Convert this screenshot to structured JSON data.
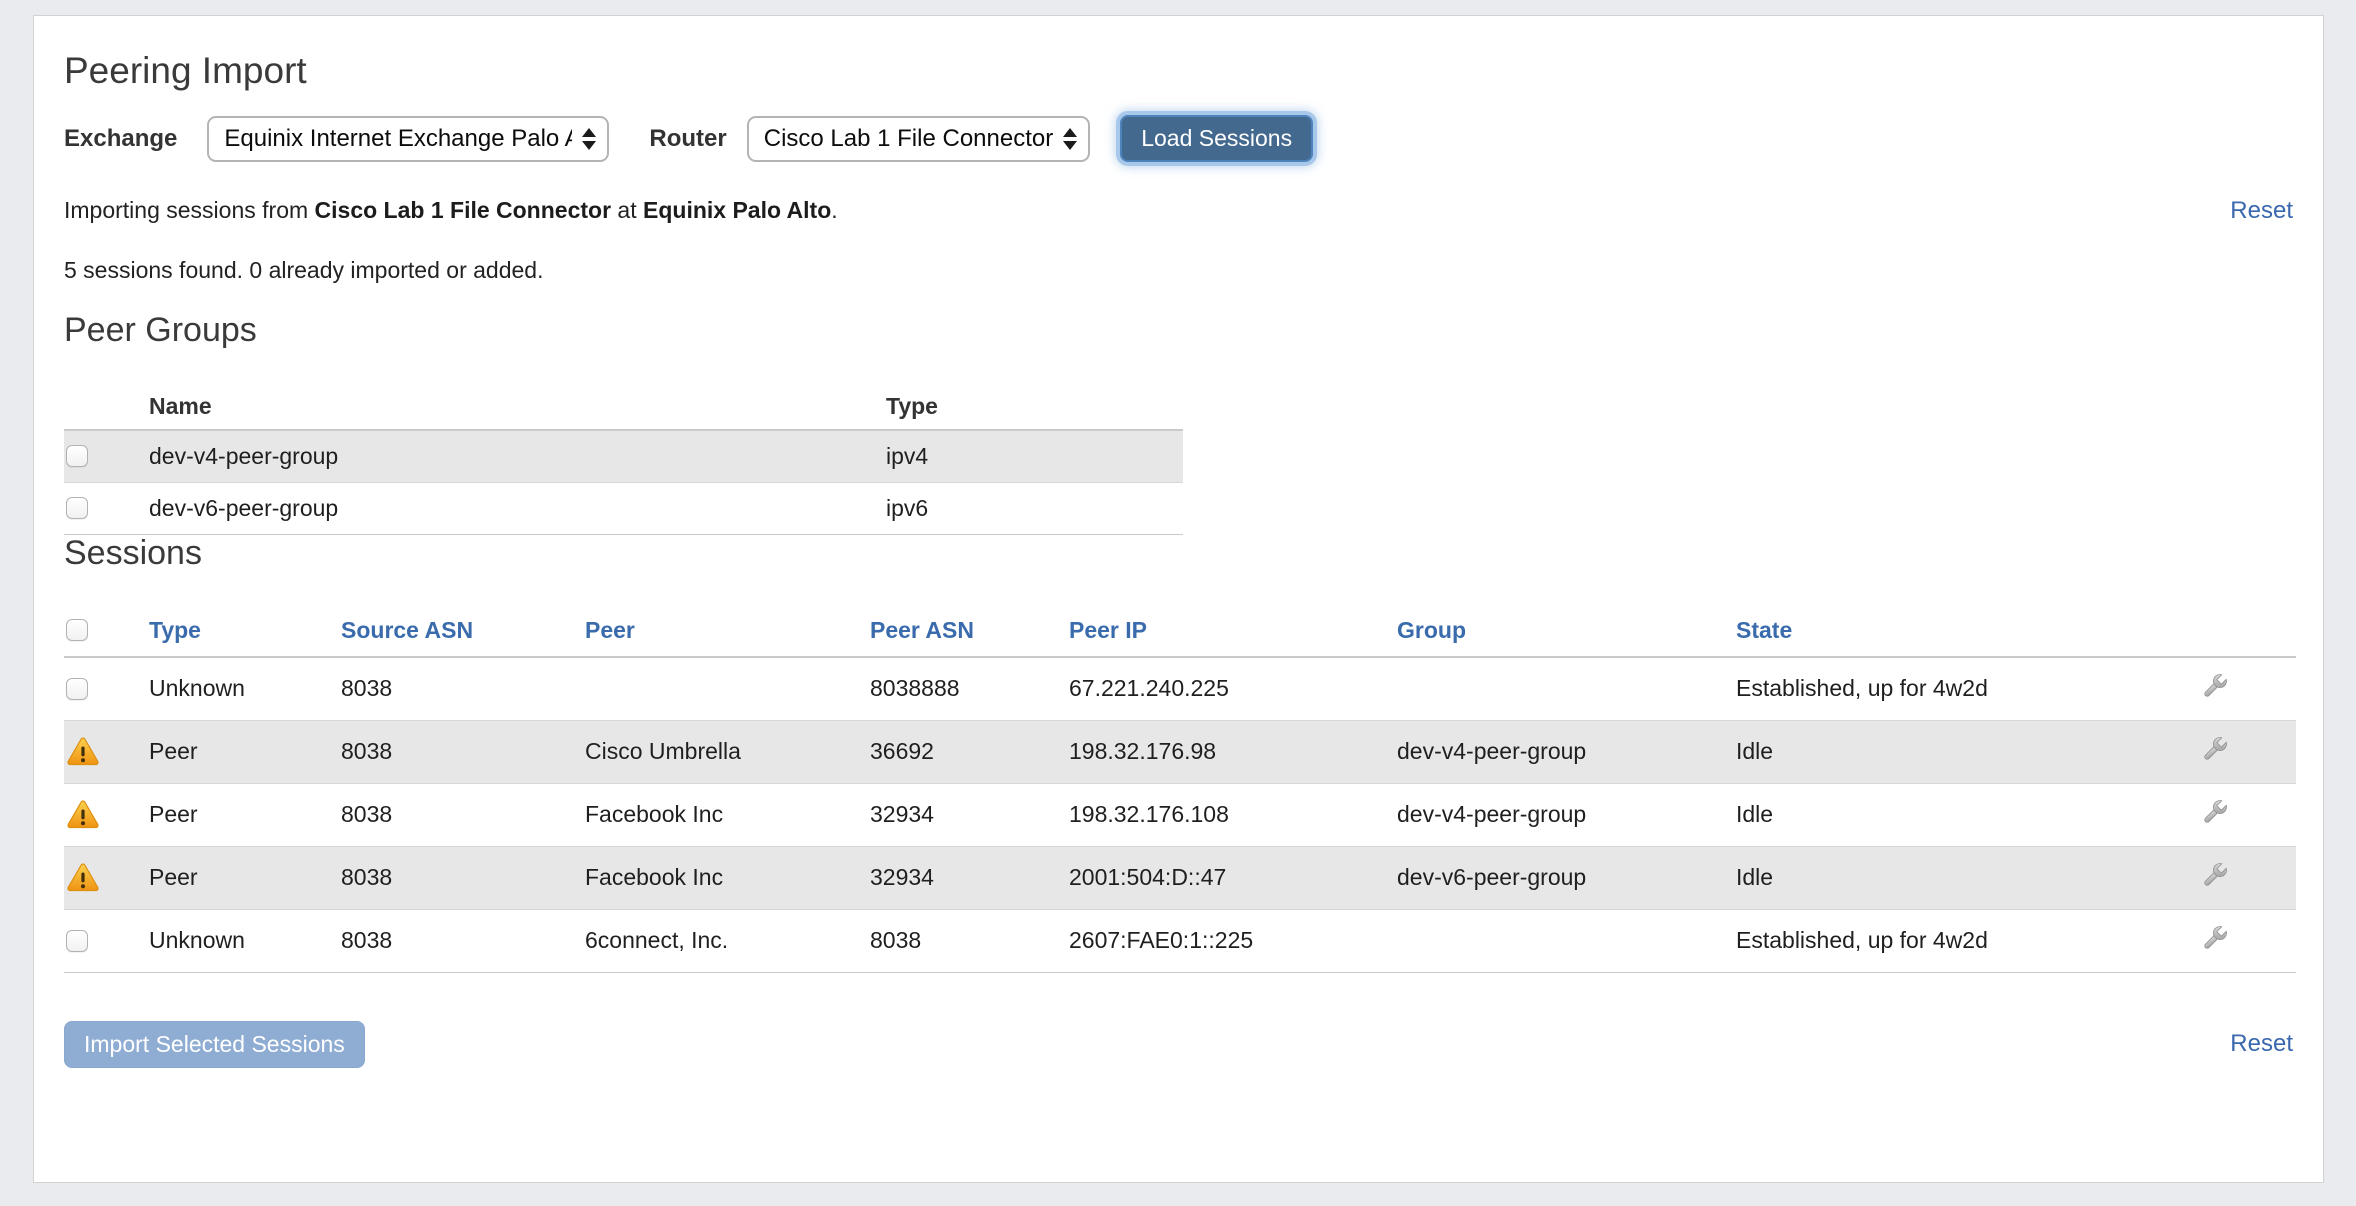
{
  "header": {
    "title": "Peering Import"
  },
  "form": {
    "exchange_label": "Exchange",
    "exchange_value": "Equinix Internet Exchange Palo Alto",
    "router_label": "Router",
    "router_value": "Cisco Lab 1 File Connector",
    "load_button": "Load Sessions"
  },
  "status": {
    "import_prefix": "Importing sessions from ",
    "connector_name": "Cisco Lab 1 File Connector",
    "at_word": " at ",
    "exchange_name": "Equinix Palo Alto",
    "period": ".",
    "summary": "5 sessions found. 0 already imported or added.",
    "reset_label": "Reset"
  },
  "peer_groups": {
    "title": "Peer Groups",
    "columns": {
      "name": "Name",
      "type": "Type"
    },
    "rows": [
      {
        "name": "dev-v4-peer-group",
        "type": "ipv4"
      },
      {
        "name": "dev-v6-peer-group",
        "type": "ipv6"
      }
    ]
  },
  "sessions": {
    "title": "Sessions",
    "columns": {
      "type": "Type",
      "source_asn": "Source ASN",
      "peer": "Peer",
      "peer_asn": "Peer ASN",
      "peer_ip": "Peer IP",
      "group": "Group",
      "state": "State"
    },
    "rows": [
      {
        "selectable": true,
        "type": "Unknown",
        "source_asn": "8038",
        "peer": "",
        "peer_asn": "8038888",
        "peer_ip": "67.221.240.225",
        "group": "",
        "state": "Established, up for 4w2d"
      },
      {
        "selectable": false,
        "type": "Peer",
        "source_asn": "8038",
        "peer": "Cisco Umbrella",
        "peer_asn": "36692",
        "peer_ip": "198.32.176.98",
        "group": "dev-v4-peer-group",
        "state": "Idle"
      },
      {
        "selectable": false,
        "type": "Peer",
        "source_asn": "8038",
        "peer": "Facebook Inc",
        "peer_asn": "32934",
        "peer_ip": "198.32.176.108",
        "group": "dev-v4-peer-group",
        "state": "Idle"
      },
      {
        "selectable": false,
        "type": "Peer",
        "source_asn": "8038",
        "peer": "Facebook Inc",
        "peer_asn": "32934",
        "peer_ip": "2001:504:D::47",
        "group": "dev-v6-peer-group",
        "state": "Idle"
      },
      {
        "selectable": true,
        "type": "Unknown",
        "source_asn": "8038",
        "peer": "6connect, Inc.",
        "peer_asn": "8038",
        "peer_ip": "2607:FAE0:1::225",
        "group": "",
        "state": "Established, up for 4w2d"
      }
    ]
  },
  "footer": {
    "import_button": "Import Selected Sessions",
    "reset_label": "Reset"
  },
  "colors": {
    "page_bg": "#e9ebee",
    "link_blue": "#3a6bac",
    "load_button_bg": "#44698f",
    "import_button_bg": "#8fadd3",
    "stripe": "#e7e7e7",
    "warning_orange": "#ef9312"
  }
}
